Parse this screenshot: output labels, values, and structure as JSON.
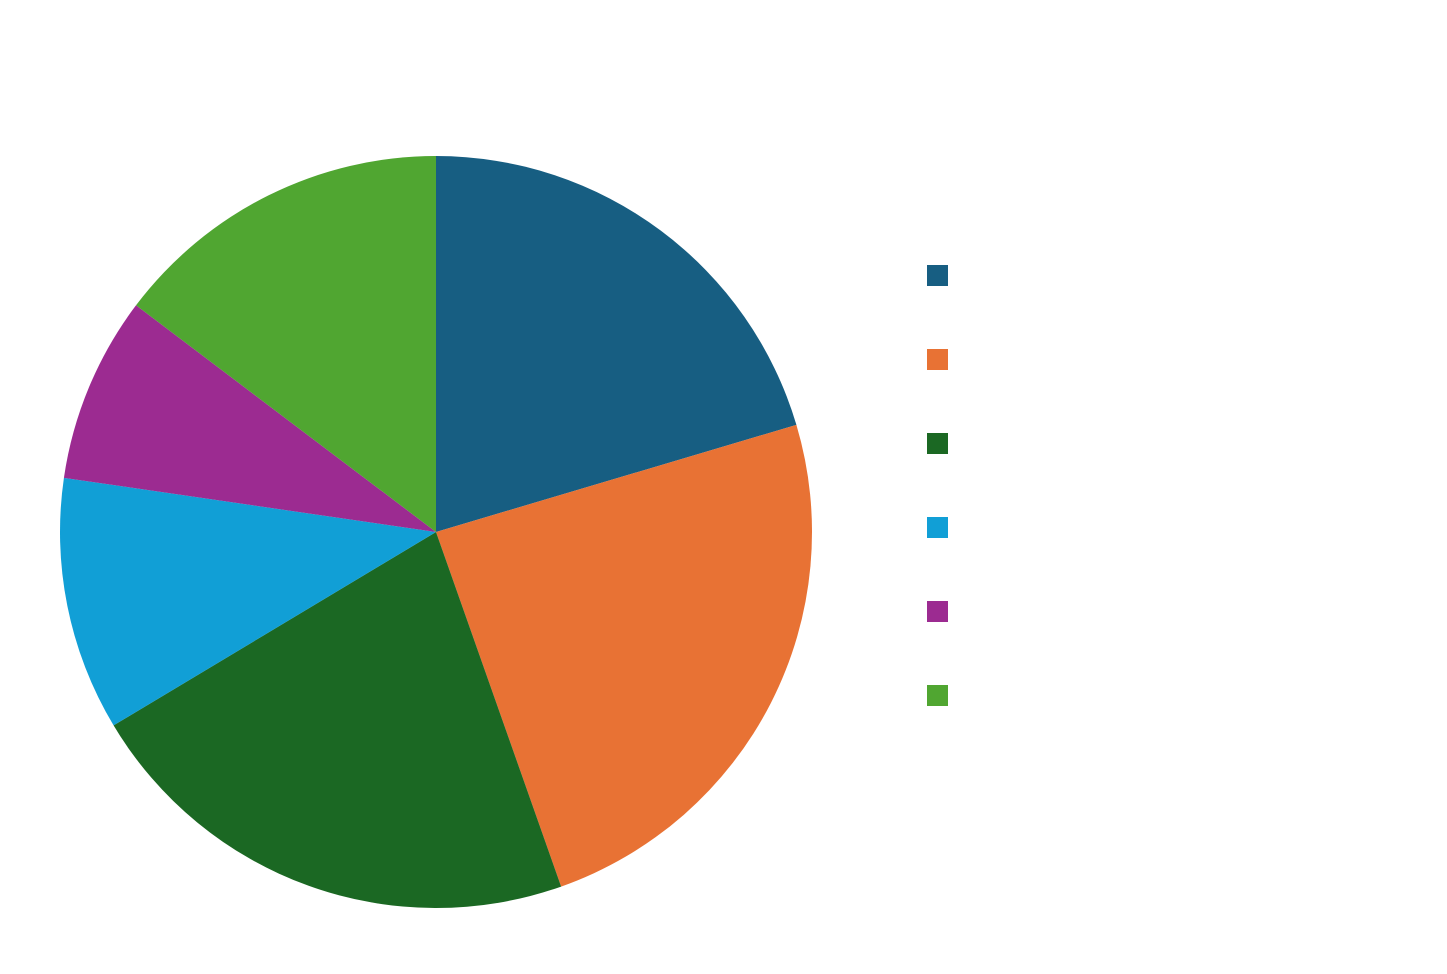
{
  "chart_data": {
    "type": "pie",
    "title": "",
    "legend_position": "right",
    "start_angle_deg": 0,
    "direction": "clockwise",
    "slices": [
      {
        "label": "",
        "value": 20.4,
        "color": "#175E82"
      },
      {
        "label": "",
        "value": 24.2,
        "color": "#E87234"
      },
      {
        "label": "",
        "value": 21.8,
        "color": "#1B6823"
      },
      {
        "label": "",
        "value": 10.9,
        "color": "#119FD6"
      },
      {
        "label": "",
        "value": 8.0,
        "color": "#9C2B91"
      },
      {
        "label": "",
        "value": 14.7,
        "color": "#50A631"
      }
    ]
  }
}
